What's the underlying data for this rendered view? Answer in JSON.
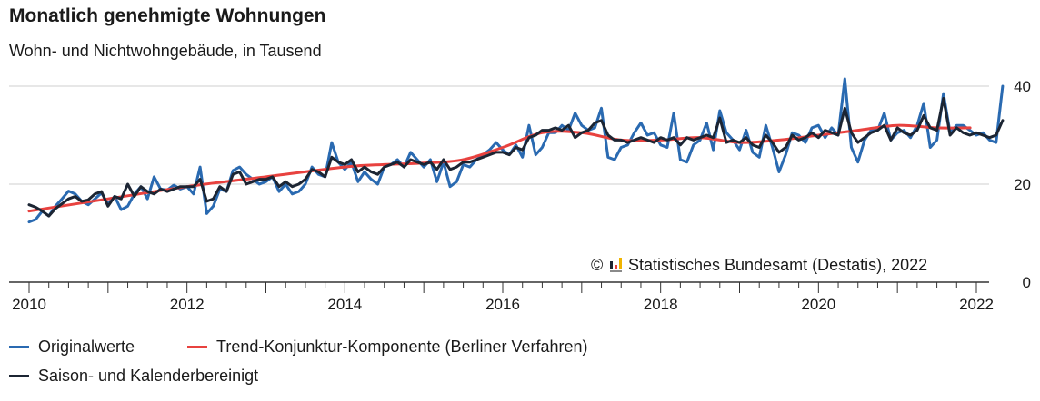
{
  "header": {
    "title": "Monatlich genehmigte Wohnungen",
    "subtitle": "Wohn- und Nichtwohngebäude, in Tausend"
  },
  "credit": {
    "text": "© Statistisches Bundesamt (Destatis), 2022",
    "logo_icon": "destatis-logo-icon"
  },
  "legend": {
    "items": [
      {
        "label": "Originalwerte",
        "color": "#2a6ab1"
      },
      {
        "label": "Trend-Konjunktur-Komponente (Berliner Verfahren)",
        "color": "#e8423f"
      },
      {
        "label": "Saison- und Kalenderbereinigt",
        "color": "#1c2533"
      }
    ]
  },
  "chart_data": {
    "type": "line",
    "title": "Monatlich genehmigte Wohnungen",
    "subtitle": "Wohn- und Nichtwohngebäude, in Tausend",
    "xlabel": "",
    "ylabel": "",
    "x_ticks": [
      "2010",
      "2012",
      "2014",
      "2016",
      "2018",
      "2020",
      "2022"
    ],
    "y_ticks": [
      0,
      20,
      40
    ],
    "xlim": [
      2010,
      2022
    ],
    "ylim": [
      0,
      40
    ],
    "grid": true,
    "legend_position": "bottom",
    "series": [
      {
        "name": "Originalwerte",
        "color": "#2a6ab1",
        "start": 2010.0,
        "step": 0.0833333,
        "values": [
          12.3,
          12.8,
          14.5,
          13.5,
          15.5,
          17.0,
          18.6,
          18.0,
          16.5,
          15.8,
          17.0,
          18.2,
          16.0,
          17.5,
          14.8,
          15.5,
          18.0,
          19.5,
          17.0,
          21.5,
          19.0,
          18.8,
          19.8,
          19.0,
          19.5,
          18.0,
          23.5,
          14.0,
          15.5,
          19.0,
          18.5,
          22.8,
          23.5,
          22.0,
          21.0,
          20.0,
          20.5,
          21.5,
          18.5,
          20.0,
          18.0,
          18.5,
          20.0,
          23.5,
          22.0,
          21.5,
          28.5,
          24.5,
          23.0,
          24.5,
          20.5,
          22.5,
          21.0,
          20.0,
          23.5,
          24.0,
          25.0,
          23.5,
          26.5,
          25.0,
          23.5,
          25.0,
          20.5,
          24.5,
          19.5,
          20.5,
          24.0,
          23.5,
          25.0,
          26.0,
          27.0,
          28.5,
          27.0,
          26.0,
          28.0,
          25.5,
          32.0,
          26.0,
          27.5,
          30.5,
          30.5,
          32.0,
          31.0,
          34.5,
          32.0,
          31.0,
          31.5,
          35.5,
          25.5,
          25.0,
          27.5,
          28.0,
          30.5,
          32.5,
          30.0,
          30.5,
          28.0,
          27.5,
          34.5,
          25.0,
          24.5,
          28.0,
          29.0,
          32.5,
          27.0,
          35.0,
          30.5,
          29.0,
          27.0,
          31.0,
          26.5,
          25.5,
          32.0,
          27.5,
          22.5,
          26.0,
          30.5,
          30.0,
          28.5,
          31.5,
          32.0,
          29.5,
          31.5,
          30.0,
          41.5,
          27.5,
          24.5,
          29.0,
          31.0,
          31.0,
          34.5,
          29.0,
          30.5,
          31.0,
          29.5,
          32.0,
          36.5,
          27.5,
          29.0,
          38.5,
          30.5,
          32.0,
          32.0,
          31.0,
          30.0,
          30.5,
          29.0,
          28.5,
          40.0
        ]
      },
      {
        "name": "Trend-Konjunktur-Komponente (Berliner Verfahren)",
        "color": "#e8423f",
        "x": [
          2010.0,
          2011.0,
          2012.0,
          2013.0,
          2014.0,
          2014.5,
          2015.0,
          2015.5,
          2016.0,
          2016.5,
          2017.0,
          2017.5,
          2018.0,
          2018.5,
          2019.0,
          2019.5,
          2020.0,
          2020.5,
          2021.0,
          2021.5,
          2021.92
        ],
        "values": [
          14.5,
          17.0,
          19.5,
          21.5,
          23.5,
          24.0,
          24.3,
          25.0,
          27.5,
          30.5,
          30.5,
          29.0,
          29.0,
          29.5,
          28.5,
          29.0,
          30.0,
          31.0,
          32.0,
          31.5,
          31.5
        ]
      },
      {
        "name": "Saison- und Kalenderbereinigt",
        "color": "#1c2533",
        "start": 2010.0,
        "step": 0.0833333,
        "values": [
          15.8,
          15.3,
          14.5,
          13.5,
          15.0,
          16.0,
          17.0,
          17.5,
          16.5,
          16.8,
          18.0,
          18.5,
          15.5,
          17.5,
          17.0,
          20.0,
          17.5,
          19.5,
          18.5,
          18.0,
          19.0,
          18.5,
          19.0,
          19.5,
          19.5,
          19.5,
          21.0,
          16.5,
          17.0,
          19.5,
          18.5,
          22.0,
          22.5,
          20.0,
          20.5,
          21.0,
          21.0,
          21.5,
          19.5,
          20.5,
          19.5,
          20.0,
          21.0,
          23.0,
          22.5,
          21.5,
          25.5,
          24.5,
          24.0,
          25.0,
          22.5,
          23.5,
          22.5,
          22.0,
          23.5,
          24.0,
          24.5,
          23.5,
          25.0,
          24.5,
          24.0,
          24.5,
          23.0,
          25.0,
          23.0,
          23.5,
          24.5,
          24.5,
          25.0,
          25.5,
          26.0,
          26.5,
          26.5,
          26.0,
          27.5,
          27.0,
          29.5,
          30.0,
          31.0,
          31.0,
          31.5,
          31.0,
          32.0,
          29.5,
          30.5,
          31.0,
          32.5,
          33.0,
          30.0,
          29.0,
          29.0,
          28.5,
          29.0,
          29.5,
          29.0,
          28.5,
          29.5,
          29.0,
          29.5,
          28.0,
          29.5,
          29.0,
          29.5,
          30.0,
          29.5,
          33.5,
          28.5,
          29.0,
          28.5,
          29.5,
          28.0,
          27.5,
          30.0,
          28.5,
          26.5,
          27.5,
          30.0,
          29.0,
          29.5,
          30.5,
          29.5,
          31.0,
          30.5,
          30.0,
          35.5,
          30.5,
          28.5,
          29.5,
          30.5,
          31.0,
          32.0,
          29.0,
          31.5,
          30.5,
          30.0,
          31.0,
          34.0,
          31.5,
          31.0,
          37.5,
          30.0,
          31.5,
          30.5,
          30.0,
          30.5,
          30.0,
          29.5,
          30.0,
          33.0
        ]
      }
    ]
  }
}
